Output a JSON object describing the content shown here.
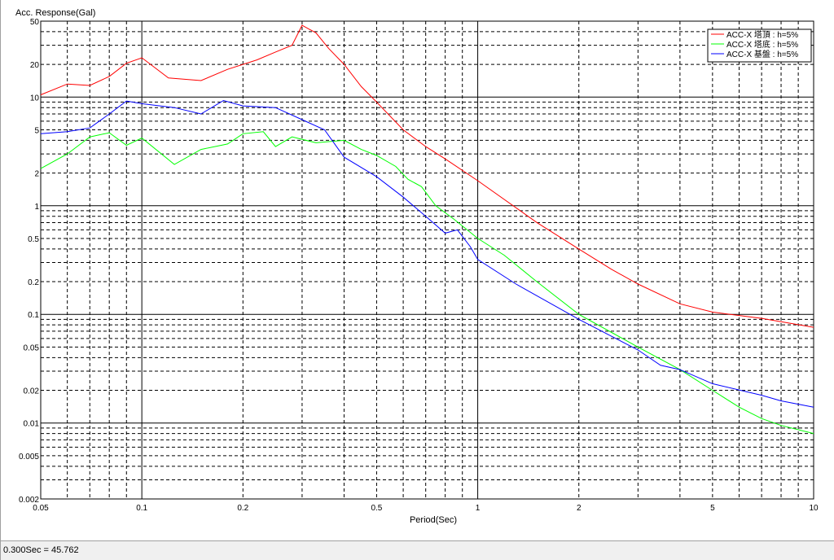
{
  "status_bar": {
    "readout": "0.300Sec = 45.762"
  },
  "colors": {
    "background": "#ffffff",
    "grid_major": "#000000",
    "grid_minor": "#000000",
    "series_top": "#ff0000",
    "series_bottom": "#00ff00",
    "series_base": "#0000ff"
  },
  "chart_data": {
    "type": "line",
    "title": "",
    "xlabel": "Period(Sec)",
    "ylabel": "Acc. Response(Gal)",
    "xscale": "log",
    "yscale": "log",
    "xlim": [
      0.05,
      10
    ],
    "ylim": [
      0.002,
      50
    ],
    "grid": true,
    "legend_position": "top-right",
    "x_tick_labels": [
      "0.05",
      "0.1",
      "0.2",
      "0.5",
      "1",
      "2",
      "5",
      "10"
    ],
    "y_tick_labels": [
      "50",
      "20",
      "10",
      "5",
      "2",
      "1",
      "0.5",
      "0.2",
      "0.1",
      "0.05",
      "0.02",
      "0.01",
      "0.005",
      "0.002"
    ],
    "series": [
      {
        "name": "ACC-X 塔頂 : h=5%",
        "color": "#ff0000",
        "points": [
          [
            0.05,
            10.5
          ],
          [
            0.06,
            13.2
          ],
          [
            0.07,
            12.8
          ],
          [
            0.08,
            15.5
          ],
          [
            0.09,
            20.5
          ],
          [
            0.1,
            23.0
          ],
          [
            0.12,
            15.0
          ],
          [
            0.15,
            14.2
          ],
          [
            0.18,
            18.0
          ],
          [
            0.22,
            22.0
          ],
          [
            0.25,
            26.0
          ],
          [
            0.28,
            30.0
          ],
          [
            0.3,
            45.762
          ],
          [
            0.33,
            39.0
          ],
          [
            0.36,
            28.0
          ],
          [
            0.4,
            20.0
          ],
          [
            0.45,
            12.5
          ],
          [
            0.5,
            9.0
          ],
          [
            0.6,
            5.0
          ],
          [
            0.7,
            3.5
          ],
          [
            0.8,
            2.7
          ],
          [
            1.0,
            1.7
          ],
          [
            1.5,
            0.7
          ],
          [
            2.0,
            0.4
          ],
          [
            2.5,
            0.26
          ],
          [
            3.0,
            0.19
          ],
          [
            4.0,
            0.125
          ],
          [
            5.0,
            0.105
          ],
          [
            7.0,
            0.092
          ],
          [
            10.0,
            0.076
          ]
        ]
      },
      {
        "name": "ACC-X 塔底 : h=5%",
        "color": "#00ff00",
        "points": [
          [
            0.05,
            2.2
          ],
          [
            0.06,
            3.0
          ],
          [
            0.07,
            4.3
          ],
          [
            0.08,
            4.7
          ],
          [
            0.09,
            3.6
          ],
          [
            0.1,
            4.2
          ],
          [
            0.125,
            2.4
          ],
          [
            0.15,
            3.3
          ],
          [
            0.18,
            3.7
          ],
          [
            0.2,
            4.6
          ],
          [
            0.23,
            4.8
          ],
          [
            0.25,
            3.5
          ],
          [
            0.28,
            4.3
          ],
          [
            0.33,
            3.8
          ],
          [
            0.4,
            4.0
          ],
          [
            0.45,
            3.3
          ],
          [
            0.5,
            2.9
          ],
          [
            0.57,
            2.3
          ],
          [
            0.62,
            1.75
          ],
          [
            0.68,
            1.5
          ],
          [
            0.75,
            1.0
          ],
          [
            0.85,
            0.75
          ],
          [
            1.0,
            0.5
          ],
          [
            1.2,
            0.35
          ],
          [
            1.5,
            0.2
          ],
          [
            2.0,
            0.1
          ],
          [
            3.0,
            0.05
          ],
          [
            4.0,
            0.031
          ],
          [
            5.0,
            0.02
          ],
          [
            6.0,
            0.014
          ],
          [
            7.0,
            0.011
          ],
          [
            8.0,
            0.0095
          ],
          [
            10.0,
            0.008
          ]
        ]
      },
      {
        "name": "ACC-X 基盤 : h=5%",
        "color": "#0000ff",
        "points": [
          [
            0.05,
            4.6
          ],
          [
            0.06,
            4.8
          ],
          [
            0.07,
            5.2
          ],
          [
            0.08,
            7.0
          ],
          [
            0.09,
            9.2
          ],
          [
            0.1,
            8.7
          ],
          [
            0.125,
            8.0
          ],
          [
            0.15,
            7.0
          ],
          [
            0.175,
            9.3
          ],
          [
            0.2,
            8.3
          ],
          [
            0.25,
            8.0
          ],
          [
            0.3,
            6.2
          ],
          [
            0.35,
            5.0
          ],
          [
            0.4,
            2.8
          ],
          [
            0.5,
            1.85
          ],
          [
            0.6,
            1.2
          ],
          [
            0.7,
            0.8
          ],
          [
            0.8,
            0.56
          ],
          [
            0.87,
            0.6
          ],
          [
            0.95,
            0.42
          ],
          [
            1.0,
            0.32
          ],
          [
            1.3,
            0.19
          ],
          [
            2.0,
            0.09
          ],
          [
            3.0,
            0.047
          ],
          [
            3.5,
            0.034
          ],
          [
            4.0,
            0.031
          ],
          [
            5.0,
            0.023
          ],
          [
            7.0,
            0.018
          ],
          [
            8.0,
            0.016
          ],
          [
            10.0,
            0.014
          ]
        ]
      }
    ]
  }
}
